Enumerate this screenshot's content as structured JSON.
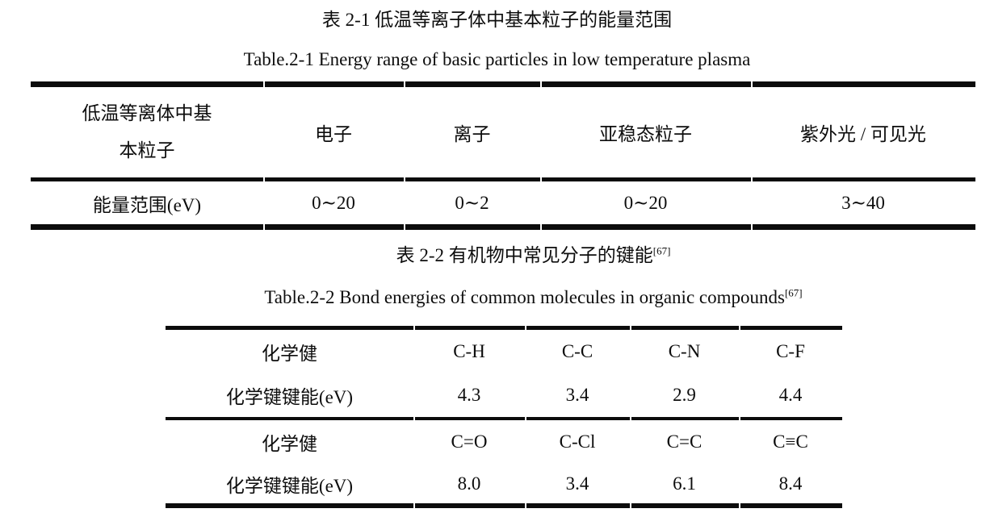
{
  "page": {
    "background": "#ffffff",
    "ink": "#0d0d0d"
  },
  "table1": {
    "title_zh": "表 2-1 低温等离子体中基本粒子的能量范围",
    "title_en": "Table.2-1 Energy range of basic particles in low temperature plasma",
    "header": {
      "col1_line1": "低温等离体中基",
      "col1_line2": "本粒子",
      "cols": [
        "电子",
        "离子",
        "亚稳态粒子",
        "紫外光 / 可见光"
      ]
    },
    "row_label": "能量范围(eV)",
    "row_values": [
      "0∼20",
      "0∼2",
      "0∼20",
      "3∼40"
    ]
  },
  "table2": {
    "title_zh": "表 2-2 有机物中常见分子的键能",
    "title_zh_sup": "[67]",
    "title_en": "Table.2-2 Bond energies of common molecules in organic compounds",
    "title_en_sup": "[67]",
    "rows": [
      {
        "label": "化学健",
        "values": [
          "C-H",
          "C-C",
          "C-N",
          "C-F"
        ]
      },
      {
        "label": "化学键键能(eV)",
        "values": [
          "4.3",
          "3.4",
          "2.9",
          "4.4"
        ]
      },
      {
        "label": "化学健",
        "values": [
          "C=O",
          "C-Cl",
          "C=C",
          "C≡C"
        ]
      },
      {
        "label": "化学键键能(eV)",
        "values": [
          "8.0",
          "3.4",
          "6.1",
          "8.4"
        ]
      }
    ]
  }
}
